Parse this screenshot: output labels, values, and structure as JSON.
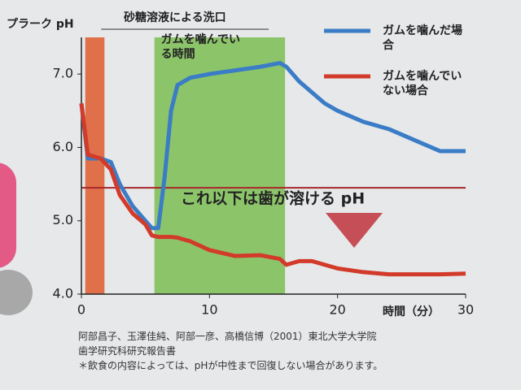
{
  "chart_data": {
    "type": "line",
    "y_label": "プラーク pH",
    "x_label": "時間（分）",
    "x": [
      0,
      0.5,
      1.5,
      2.3,
      3,
      4,
      5,
      5.5,
      6,
      6.5,
      7,
      7.5,
      8.5,
      10,
      12,
      14,
      15.5,
      16,
      17,
      18,
      19,
      20,
      22,
      24,
      26,
      28,
      30
    ],
    "series": [
      {
        "name": "ガムを噛んだ場合",
        "color": "#3a7cc6",
        "values": [
          6.6,
          5.85,
          5.85,
          5.8,
          5.5,
          5.2,
          5.0,
          4.9,
          4.9,
          5.6,
          6.5,
          6.85,
          6.95,
          7.0,
          7.05,
          7.1,
          7.15,
          7.1,
          6.9,
          6.75,
          6.6,
          6.5,
          6.35,
          6.25,
          6.1,
          5.95,
          5.95
        ]
      },
      {
        "name": "ガムを噛んでいない場合",
        "color": "#d23a2a",
        "values": [
          6.6,
          5.9,
          5.85,
          5.7,
          5.35,
          5.1,
          4.95,
          4.8,
          4.78,
          4.78,
          4.78,
          4.77,
          4.72,
          4.6,
          4.52,
          4.53,
          4.48,
          4.4,
          4.45,
          4.45,
          4.4,
          4.35,
          4.3,
          4.27,
          4.27,
          4.27,
          4.28
        ]
      }
    ],
    "xlim": [
      0,
      30
    ],
    "xticks": [
      0,
      10,
      20,
      30
    ],
    "ylim": [
      4,
      7.5
    ],
    "yticks": [
      {
        "value": 4,
        "label": "4.0"
      },
      {
        "value": 5,
        "label": "5.0"
      },
      {
        "value": 6,
        "label": "6.0"
      },
      {
        "value": 7,
        "label": "7.0"
      }
    ],
    "bands": [
      {
        "label": "砂糖溶液による洗口",
        "x": [
          0.3,
          1.8
        ],
        "color": "#e0704a"
      },
      {
        "label": "ガムを噛んでいる時間",
        "x": [
          5.7,
          15.9
        ],
        "color": "#8cc46a"
      }
    ],
    "reference_line": {
      "value": 5.45,
      "label": "これ以下は歯が溶ける pH",
      "color": "#a8282c"
    },
    "notes": [
      "阿部昌子、玉澤佳純、阿部一彦、高橋信博（2001）東北大学大学院",
      "歯学研究科研究報告書",
      "＊飲食の内容によっては、pHが中性まで回復しない場合があります。"
    ]
  }
}
